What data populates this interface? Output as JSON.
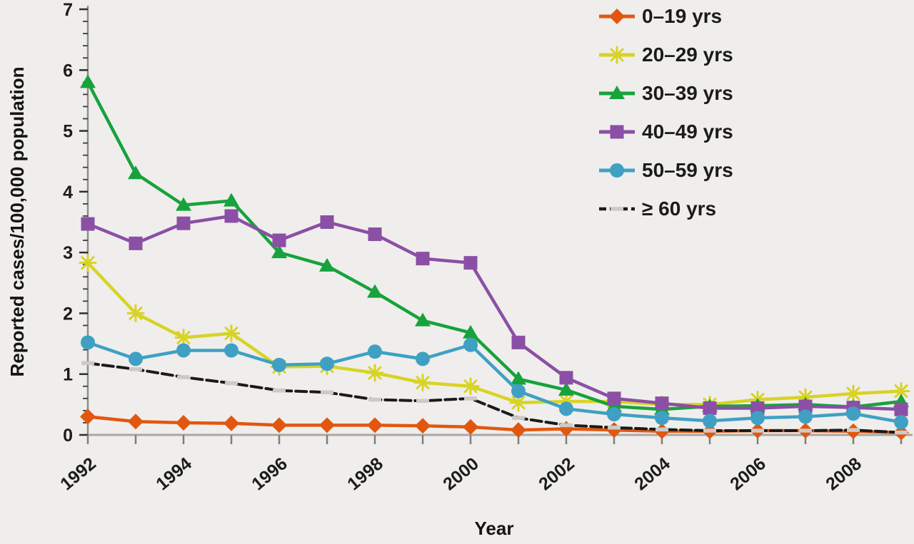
{
  "figure": {
    "background_color": "#efeeec",
    "axis_line_color": "#a9a8a5",
    "tick_color": "#3c3c3a",
    "text_color": "#1c1c1a"
  },
  "chart_data": {
    "type": "line",
    "title": "",
    "xlabel": "Year",
    "ylabel": "Reported cases/100,000 population",
    "categories": [
      "1992",
      "1993",
      "1994",
      "1995",
      "1996",
      "1997",
      "1998",
      "1999",
      "2000",
      "2001",
      "2002",
      "2003",
      "2004",
      "2005",
      "2006",
      "2007",
      "2008",
      "2009"
    ],
    "x_tick_labels": [
      "1992",
      "1994",
      "1996",
      "1998",
      "2000",
      "2002",
      "2004",
      "2006",
      "2008"
    ],
    "ylim": [
      0,
      7
    ],
    "y_ticks": [
      0,
      1,
      2,
      3,
      4,
      5,
      6,
      7
    ],
    "y_minor_step": 0.2,
    "grid": false,
    "legend_position": "top-right",
    "series": [
      {
        "name": "0–19 yrs",
        "color": "#E2570F",
        "marker": "diamond",
        "line_style": "solid",
        "values": [
          0.3,
          0.22,
          0.2,
          0.19,
          0.16,
          0.16,
          0.16,
          0.15,
          0.13,
          0.08,
          0.1,
          0.08,
          0.06,
          0.06,
          0.07,
          0.07,
          0.06,
          0.04
        ]
      },
      {
        "name": "20–29 yrs",
        "color": "#D8D325",
        "marker": "asterisk",
        "line_style": "solid",
        "values": [
          2.83,
          2.0,
          1.6,
          1.67,
          1.12,
          1.13,
          1.02,
          0.86,
          0.8,
          0.53,
          0.55,
          0.55,
          0.5,
          0.5,
          0.58,
          0.62,
          0.68,
          0.72
        ]
      },
      {
        "name": "30–39 yrs",
        "color": "#17A23B",
        "marker": "triangle",
        "line_style": "solid",
        "values": [
          5.8,
          4.3,
          3.78,
          3.85,
          3.0,
          2.78,
          2.35,
          1.88,
          1.68,
          0.92,
          0.74,
          0.47,
          0.42,
          0.47,
          0.48,
          0.5,
          0.46,
          0.55
        ]
      },
      {
        "name": "40–49 yrs",
        "color": "#8B4FA5",
        "marker": "square",
        "line_style": "solid",
        "values": [
          3.47,
          3.15,
          3.48,
          3.6,
          3.2,
          3.5,
          3.3,
          2.9,
          2.83,
          1.52,
          0.94,
          0.6,
          0.52,
          0.44,
          0.44,
          0.47,
          0.45,
          0.42
        ]
      },
      {
        "name": "50–59 yrs",
        "color": "#3FA0C4",
        "marker": "circle",
        "line_style": "solid",
        "values": [
          1.52,
          1.25,
          1.39,
          1.39,
          1.15,
          1.17,
          1.37,
          1.25,
          1.48,
          0.72,
          0.43,
          0.34,
          0.28,
          0.23,
          0.28,
          0.3,
          0.35,
          0.21
        ]
      },
      {
        "name": "≥ 60 yrs",
        "color": "#1A1A18",
        "marker": "dash",
        "marker_color": "#cbcac8",
        "line_style": "dashed",
        "values": [
          1.18,
          1.08,
          0.95,
          0.85,
          0.73,
          0.7,
          0.58,
          0.56,
          0.6,
          0.28,
          0.16,
          0.12,
          0.09,
          0.07,
          0.07,
          0.07,
          0.08,
          0.04
        ]
      }
    ]
  }
}
